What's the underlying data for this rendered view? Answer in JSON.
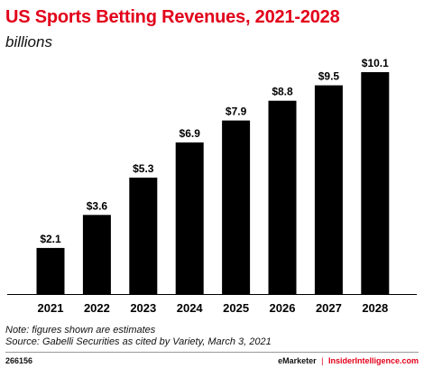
{
  "chart_data": {
    "type": "bar",
    "title": "US Sports Betting Revenues, 2021-2028",
    "subtitle": "billions",
    "categories": [
      "2021",
      "2022",
      "2023",
      "2024",
      "2025",
      "2026",
      "2027",
      "2028"
    ],
    "values": [
      2.1,
      3.6,
      5.3,
      6.9,
      7.9,
      8.8,
      9.5,
      10.1
    ],
    "data_labels": [
      "$2.1",
      "$3.6",
      "$5.3",
      "$6.9",
      "$7.9",
      "$8.8",
      "$9.5",
      "$10.1"
    ],
    "ylim": [
      0,
      10.1
    ],
    "grid": false,
    "legend": "none",
    "bar_color": "#000000"
  },
  "notes": {
    "note": "Note: figures shown are estimates",
    "source": "Source: Gabelli Securities as cited by Variety, March 3, 2021"
  },
  "footer": {
    "chart_id": "266156",
    "brand_left": "eMarketer",
    "separator": "|",
    "brand_right": "InsiderIntelligence.com"
  },
  "colors": {
    "title": "#e2001a",
    "brand_accent": "#e2001a"
  }
}
